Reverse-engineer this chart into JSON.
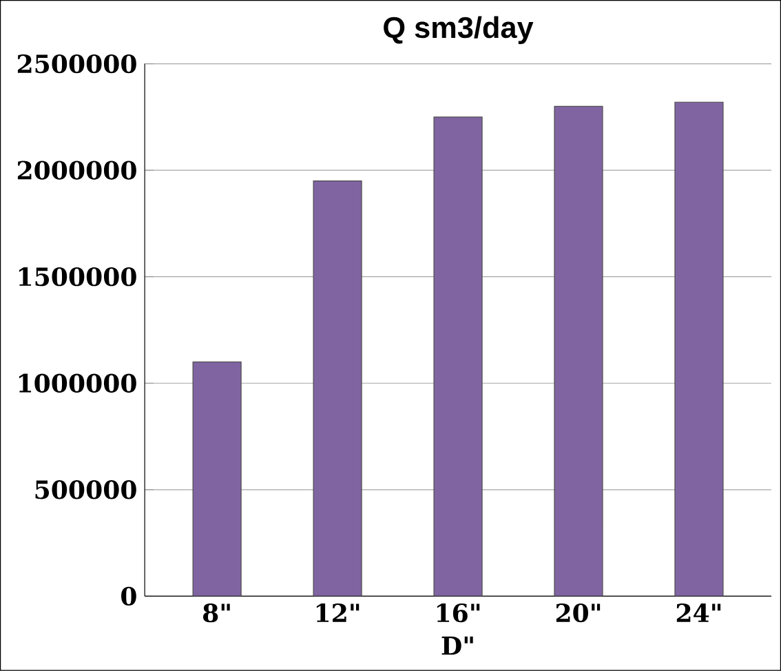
{
  "chart_data": {
    "type": "bar",
    "title": "Q sm3/day",
    "xlabel": "D\"",
    "categories": [
      "8\"",
      "12\"",
      "16\"",
      "20\"",
      "24\""
    ],
    "values": [
      1100000,
      1950000,
      2250000,
      2300000,
      2320000
    ],
    "color": "#8064a2",
    "ylim": [
      0,
      2500000
    ],
    "yticks": [
      0,
      500000,
      1000000,
      1500000,
      2000000,
      2500000
    ],
    "grid": "y"
  }
}
